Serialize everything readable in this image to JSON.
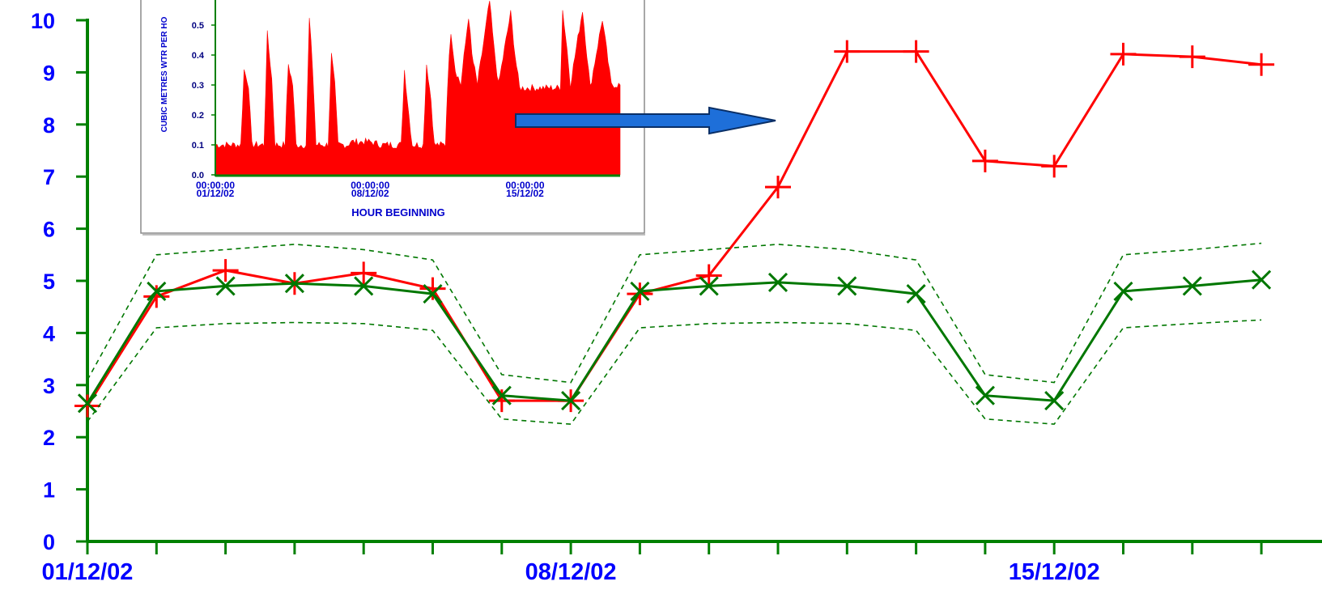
{
  "chart_data": [
    {
      "type": "line",
      "title": "",
      "xlabel": "",
      "ylabel": "",
      "ylim": [
        0,
        10
      ],
      "yticks": [
        0,
        1,
        2,
        3,
        4,
        5,
        6,
        7,
        8,
        9,
        10
      ],
      "x_tick_labels": [
        {
          "x": 0,
          "label": "01/12/02"
        },
        {
          "x": 7,
          "label": "08/12/02"
        },
        {
          "x": 14,
          "label": "15/12/02"
        }
      ],
      "xlim": [
        0,
        17
      ],
      "grid": false,
      "series": [
        {
          "color": "#ff0000",
          "marker": "plus",
          "x": [
            0,
            1,
            2,
            3,
            4,
            5,
            6,
            7,
            8,
            9,
            10,
            11,
            12,
            13,
            14,
            15,
            16,
            17
          ],
          "values": [
            2.6,
            4.7,
            5.2,
            4.95,
            5.15,
            4.85,
            2.7,
            2.7,
            4.75,
            5.1,
            6.8,
            9.4,
            9.4,
            7.3,
            7.2,
            9.35,
            9.3,
            9.15
          ]
        },
        {
          "color": "#007700",
          "marker": "x",
          "x": [
            0,
            1,
            2,
            3,
            4,
            5,
            6,
            7,
            8,
            9,
            10,
            11,
            12,
            13,
            14,
            15,
            16,
            17
          ],
          "values": [
            2.65,
            4.8,
            4.9,
            4.95,
            4.9,
            4.75,
            2.8,
            2.7,
            4.8,
            4.9,
            4.97,
            4.9,
            4.75,
            2.8,
            2.7,
            4.8,
            4.9,
            5.02
          ]
        },
        {
          "color": "#007700",
          "line_style": "dashed",
          "x": [
            0,
            1,
            2,
            3,
            4,
            5,
            6,
            7,
            8,
            9,
            10,
            11,
            12,
            13,
            14,
            15,
            16,
            17
          ],
          "values": [
            3.1,
            5.5,
            5.6,
            5.7,
            5.6,
            5.4,
            3.2,
            3.05,
            5.5,
            5.6,
            5.7,
            5.6,
            5.4,
            3.2,
            3.05,
            5.5,
            5.6,
            5.72
          ]
        },
        {
          "color": "#007700",
          "line_style": "dashed",
          "x": [
            0,
            1,
            2,
            3,
            4,
            5,
            6,
            7,
            8,
            9,
            10,
            11,
            12,
            13,
            14,
            15,
            16,
            17
          ],
          "values": [
            2.3,
            4.1,
            4.18,
            4.2,
            4.18,
            4.05,
            2.35,
            2.25,
            4.1,
            4.18,
            4.2,
            4.18,
            4.05,
            2.35,
            2.25,
            4.1,
            4.18,
            4.25
          ]
        }
      ]
    },
    {
      "type": "area",
      "title": "",
      "xlabel": "HOUR BEGINNING",
      "ylabel": "CUBIC METRES WTR PER HO",
      "ylim": [
        0,
        0.6
      ],
      "ytick_labels": [
        "0.0",
        "0.1",
        "0.2",
        "0.3",
        "0.4",
        "0.5"
      ],
      "x_tick_labels": [
        {
          "day": 0,
          "time": "00:00:00",
          "date": "01/12/02"
        },
        {
          "day": 7,
          "time": "00:00:00",
          "date": "08/12/02"
        },
        {
          "day": 14,
          "time": "00:00:00",
          "date": "15/12/02"
        }
      ],
      "xlim": [
        0,
        18.3
      ],
      "fill_color": "#ff0000",
      "profile_points": [
        [
          0,
          0.1
        ],
        [
          1.15,
          0.1
        ],
        [
          1.3,
          0.35
        ],
        [
          1.5,
          0.3
        ],
        [
          1.65,
          0.1
        ],
        [
          2.2,
          0.1
        ],
        [
          2.35,
          0.47
        ],
        [
          2.55,
          0.32
        ],
        [
          2.7,
          0.1
        ],
        [
          3.15,
          0.1
        ],
        [
          3.3,
          0.37
        ],
        [
          3.5,
          0.3
        ],
        [
          3.65,
          0.1
        ],
        [
          4.1,
          0.1
        ],
        [
          4.25,
          0.52
        ],
        [
          4.4,
          0.35
        ],
        [
          4.55,
          0.1
        ],
        [
          5.1,
          0.1
        ],
        [
          5.25,
          0.4
        ],
        [
          5.4,
          0.3
        ],
        [
          5.55,
          0.1
        ],
        [
          6.0,
          0.1
        ],
        [
          6.1,
          0.11
        ],
        [
          7.0,
          0.11
        ],
        [
          7.5,
          0.1
        ],
        [
          8.4,
          0.1
        ],
        [
          8.55,
          0.35
        ],
        [
          8.75,
          0.2
        ],
        [
          8.9,
          0.1
        ],
        [
          9.4,
          0.1
        ],
        [
          9.55,
          0.37
        ],
        [
          9.75,
          0.25
        ],
        [
          9.9,
          0.1
        ],
        [
          10.4,
          0.1
        ],
        [
          10.5,
          0.3
        ],
        [
          10.65,
          0.48
        ],
        [
          10.85,
          0.35
        ],
        [
          11.1,
          0.3
        ],
        [
          11.45,
          0.53
        ],
        [
          11.6,
          0.4
        ],
        [
          11.85,
          0.3
        ],
        [
          12.4,
          0.58
        ],
        [
          12.6,
          0.42
        ],
        [
          12.8,
          0.3
        ],
        [
          13.35,
          0.54
        ],
        [
          13.55,
          0.4
        ],
        [
          13.75,
          0.29
        ],
        [
          15.6,
          0.29
        ],
        [
          15.7,
          0.55
        ],
        [
          15.9,
          0.42
        ],
        [
          16.05,
          0.3
        ],
        [
          16.6,
          0.55
        ],
        [
          16.8,
          0.4
        ],
        [
          16.95,
          0.29
        ],
        [
          17.5,
          0.52
        ],
        [
          17.75,
          0.38
        ],
        [
          17.9,
          0.3
        ],
        [
          18.3,
          0.3
        ]
      ]
    }
  ],
  "annotation": {
    "arrow_color": "#1e6fd9"
  }
}
